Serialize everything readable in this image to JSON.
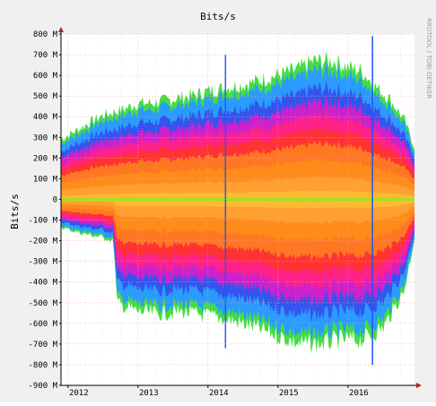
{
  "chart_data": {
    "type": "area",
    "title": "Bits/s",
    "ylabel": "Bits/s",
    "xlabel": "",
    "side_watermark": "RRDTOOL / TOBI OETIKER",
    "ylim": [
      -900,
      800
    ],
    "y_ticks": [
      {
        "v": 800,
        "label": "800 M"
      },
      {
        "v": 700,
        "label": "700 M"
      },
      {
        "v": 600,
        "label": "600 M"
      },
      {
        "v": 500,
        "label": "500 M"
      },
      {
        "v": 400,
        "label": "400 M"
      },
      {
        "v": 300,
        "label": "300 M"
      },
      {
        "v": 200,
        "label": "200 M"
      },
      {
        "v": 100,
        "label": "100 M"
      },
      {
        "v": 0,
        "label": "0"
      },
      {
        "v": -100,
        "label": "-100 M"
      },
      {
        "v": -200,
        "label": "-200 M"
      },
      {
        "v": -300,
        "label": "-300 M"
      },
      {
        "v": -400,
        "label": "-400 M"
      },
      {
        "v": -500,
        "label": "-500 M"
      },
      {
        "v": -600,
        "label": "-600 M"
      },
      {
        "v": -700,
        "label": "-700 M"
      },
      {
        "v": -800,
        "label": "-800 M"
      },
      {
        "v": -900,
        "label": "-900 M"
      }
    ],
    "xlim": [
      2011.9,
      2016.95
    ],
    "x_ticks": [
      {
        "v": 2012,
        "label": "2012"
      },
      {
        "v": 2013,
        "label": "2013"
      },
      {
        "v": 2014,
        "label": "2014"
      },
      {
        "v": 2015,
        "label": "2015"
      },
      {
        "v": 2016,
        "label": "2016"
      }
    ],
    "upper_envelope": {
      "x": [
        2011.9,
        2012.2,
        2012.5,
        2012.8,
        2013.0,
        2013.2,
        2013.5,
        2013.8,
        2014.0,
        2014.3,
        2014.6,
        2015.0,
        2015.3,
        2015.5,
        2015.8,
        2016.0,
        2016.2,
        2016.4,
        2016.6,
        2016.8,
        2016.95
      ],
      "y": [
        300,
        360,
        420,
        450,
        480,
        480,
        500,
        520,
        540,
        560,
        580,
        620,
        650,
        690,
        690,
        660,
        640,
        560,
        500,
        400,
        260
      ]
    },
    "lower_envelope": {
      "x": [
        2011.9,
        2012.2,
        2012.5,
        2012.65,
        2012.7,
        2013.0,
        2013.3,
        2013.6,
        2014.0,
        2014.3,
        2014.6,
        2015.0,
        2015.3,
        2015.6,
        2015.9,
        2016.2,
        2016.5,
        2016.8,
        2016.95
      ],
      "y": [
        -140,
        -170,
        -190,
        -210,
        -520,
        -560,
        -570,
        -560,
        -580,
        -600,
        -630,
        -680,
        -720,
        -720,
        -700,
        -700,
        -640,
        -460,
        -200
      ]
    },
    "spikes": [
      {
        "x": 2014.25,
        "y_top": 700,
        "y_bottom": -720
      },
      {
        "x": 2016.35,
        "y_top": 790,
        "y_bottom": -800
      }
    ],
    "bands": [
      {
        "frac": 1.0,
        "color": "#44dd44"
      },
      {
        "frac": 0.93,
        "color": "#2a9bff"
      },
      {
        "frac": 0.8,
        "color": "#3355ee"
      },
      {
        "frac": 0.7,
        "color": "#cc22cc"
      },
      {
        "frac": 0.6,
        "color": "#ff2288"
      },
      {
        "frac": 0.5,
        "color": "#ff3333"
      },
      {
        "frac": 0.4,
        "color": "#ff7722"
      },
      {
        "frac": 0.28,
        "color": "#ff8c1a"
      },
      {
        "frac": 0.16,
        "color": "#ffa030"
      },
      {
        "frac": 0.06,
        "color": "#ffbb33"
      }
    ],
    "center_line_color": "#aadd22",
    "grid": true,
    "grid_color": "#ff9999",
    "axis_color": "#000000"
  }
}
